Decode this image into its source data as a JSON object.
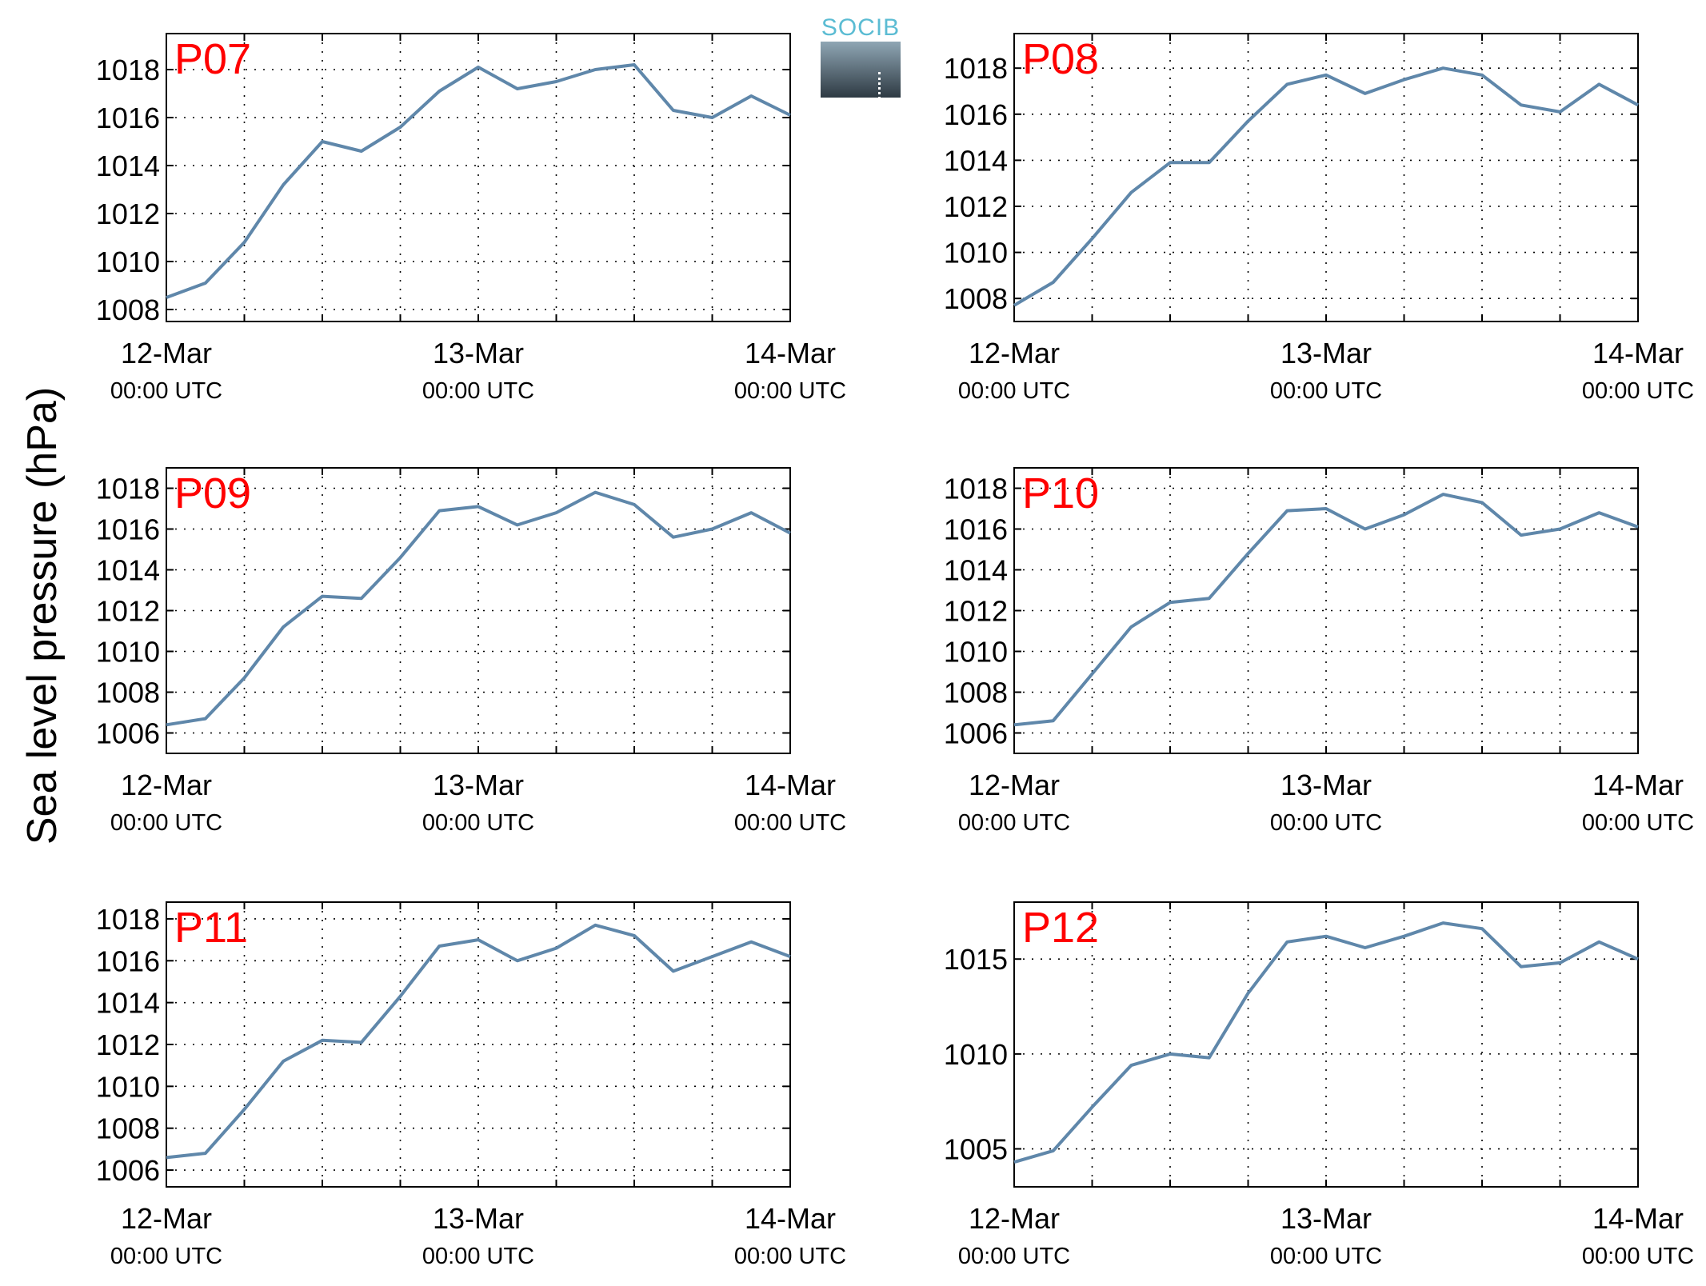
{
  "figure": {
    "ylabel": "Sea level pressure (hPa)",
    "panel_color": "#ff0000",
    "line_color": "#5f87aa",
    "x_ticks": [
      {
        "date": "12-Mar",
        "time": "00:00 UTC"
      },
      {
        "date": "13-Mar",
        "time": "00:00 UTC"
      },
      {
        "date": "14-Mar",
        "time": "00:00 UTC"
      }
    ]
  },
  "logo": {
    "text": "SOCIB",
    "text_color": "#5bbcd3"
  },
  "chart_data": [
    {
      "type": "line",
      "title": "P07",
      "x": [
        "2012-03-12 00:00",
        "2012-03-12 03:00",
        "2012-03-12 06:00",
        "2012-03-12 09:00",
        "2012-03-12 12:00",
        "2012-03-12 15:00",
        "2012-03-12 18:00",
        "2012-03-12 21:00",
        "2012-03-13 00:00",
        "2012-03-13 03:00",
        "2012-03-13 06:00",
        "2012-03-13 09:00",
        "2012-03-13 12:00",
        "2012-03-13 15:00",
        "2012-03-13 18:00",
        "2012-03-13 21:00",
        "2012-03-14 00:00"
      ],
      "xlim": [
        "2012-03-12 00:00",
        "2012-03-14 00:00"
      ],
      "ylim": [
        1007.5,
        1019.5
      ],
      "yticks": [
        1008,
        1010,
        1012,
        1014,
        1016,
        1018
      ],
      "grid": true,
      "series": [
        {
          "values": [
            1008.5,
            1009.1,
            1010.8,
            1013.2,
            1015.0,
            1014.6,
            1015.6,
            1017.1,
            1018.1,
            1017.2,
            1017.5,
            1018.0,
            1018.2,
            1016.3,
            1016.0,
            1016.9,
            1016.1
          ]
        }
      ]
    },
    {
      "type": "line",
      "title": "P08",
      "x": [
        "2012-03-12 00:00",
        "2012-03-12 03:00",
        "2012-03-12 06:00",
        "2012-03-12 09:00",
        "2012-03-12 12:00",
        "2012-03-12 15:00",
        "2012-03-12 18:00",
        "2012-03-12 21:00",
        "2012-03-13 00:00",
        "2012-03-13 03:00",
        "2012-03-13 06:00",
        "2012-03-13 09:00",
        "2012-03-13 12:00",
        "2012-03-13 15:00",
        "2012-03-13 18:00",
        "2012-03-13 21:00",
        "2012-03-14 00:00"
      ],
      "xlim": [
        "2012-03-12 00:00",
        "2012-03-14 00:00"
      ],
      "ylim": [
        1007,
        1019.5
      ],
      "yticks": [
        1008,
        1010,
        1012,
        1014,
        1016,
        1018
      ],
      "grid": true,
      "series": [
        {
          "values": [
            1007.7,
            1008.7,
            1010.6,
            1012.6,
            1013.9,
            1013.9,
            1015.7,
            1017.3,
            1017.7,
            1016.9,
            1017.5,
            1018.0,
            1017.7,
            1016.4,
            1016.1,
            1017.3,
            1016.4
          ]
        }
      ]
    },
    {
      "type": "line",
      "title": "P09",
      "x": [
        "2012-03-12 00:00",
        "2012-03-12 03:00",
        "2012-03-12 06:00",
        "2012-03-12 09:00",
        "2012-03-12 12:00",
        "2012-03-12 15:00",
        "2012-03-12 18:00",
        "2012-03-12 21:00",
        "2012-03-13 00:00",
        "2012-03-13 03:00",
        "2012-03-13 06:00",
        "2012-03-13 09:00",
        "2012-03-13 12:00",
        "2012-03-13 15:00",
        "2012-03-13 18:00",
        "2012-03-13 21:00",
        "2012-03-14 00:00"
      ],
      "xlim": [
        "2012-03-12 00:00",
        "2012-03-14 00:00"
      ],
      "ylim": [
        1005,
        1019
      ],
      "yticks": [
        1006,
        1008,
        1010,
        1012,
        1014,
        1016,
        1018
      ],
      "grid": true,
      "series": [
        {
          "values": [
            1006.4,
            1006.7,
            1008.7,
            1011.2,
            1012.7,
            1012.6,
            1014.6,
            1016.9,
            1017.1,
            1016.2,
            1016.8,
            1017.8,
            1017.2,
            1015.6,
            1016.0,
            1016.8,
            1015.8
          ]
        }
      ]
    },
    {
      "type": "line",
      "title": "P10",
      "x": [
        "2012-03-12 00:00",
        "2012-03-12 03:00",
        "2012-03-12 06:00",
        "2012-03-12 09:00",
        "2012-03-12 12:00",
        "2012-03-12 15:00",
        "2012-03-12 18:00",
        "2012-03-12 21:00",
        "2012-03-13 00:00",
        "2012-03-13 03:00",
        "2012-03-13 06:00",
        "2012-03-13 09:00",
        "2012-03-13 12:00",
        "2012-03-13 15:00",
        "2012-03-13 18:00",
        "2012-03-13 21:00",
        "2012-03-14 00:00"
      ],
      "xlim": [
        "2012-03-12 00:00",
        "2012-03-14 00:00"
      ],
      "ylim": [
        1005,
        1019
      ],
      "yticks": [
        1006,
        1008,
        1010,
        1012,
        1014,
        1016,
        1018
      ],
      "grid": true,
      "series": [
        {
          "values": [
            1006.4,
            1006.6,
            1008.9,
            1011.2,
            1012.4,
            1012.6,
            1014.8,
            1016.9,
            1017.0,
            1016.0,
            1016.7,
            1017.7,
            1017.3,
            1015.7,
            1016.0,
            1016.8,
            1016.1
          ]
        }
      ]
    },
    {
      "type": "line",
      "title": "P11",
      "x": [
        "2012-03-12 00:00",
        "2012-03-12 03:00",
        "2012-03-12 06:00",
        "2012-03-12 09:00",
        "2012-03-12 12:00",
        "2012-03-12 15:00",
        "2012-03-12 18:00",
        "2012-03-12 21:00",
        "2012-03-13 00:00",
        "2012-03-13 03:00",
        "2012-03-13 06:00",
        "2012-03-13 09:00",
        "2012-03-13 12:00",
        "2012-03-13 15:00",
        "2012-03-13 18:00",
        "2012-03-13 21:00",
        "2012-03-14 00:00"
      ],
      "xlim": [
        "2012-03-12 00:00",
        "2012-03-14 00:00"
      ],
      "ylim": [
        1005.2,
        1018.8
      ],
      "yticks": [
        1006,
        1008,
        1010,
        1012,
        1014,
        1016,
        1018
      ],
      "grid": true,
      "series": [
        {
          "values": [
            1006.6,
            1006.8,
            1008.9,
            1011.2,
            1012.2,
            1012.1,
            1014.3,
            1016.7,
            1017.0,
            1016.0,
            1016.6,
            1017.7,
            1017.2,
            1015.5,
            1016.2,
            1016.9,
            1016.2
          ]
        }
      ]
    },
    {
      "type": "line",
      "title": "P12",
      "x": [
        "2012-03-12 00:00",
        "2012-03-12 03:00",
        "2012-03-12 06:00",
        "2012-03-12 09:00",
        "2012-03-12 12:00",
        "2012-03-12 15:00",
        "2012-03-12 18:00",
        "2012-03-12 21:00",
        "2012-03-13 00:00",
        "2012-03-13 03:00",
        "2012-03-13 06:00",
        "2012-03-13 09:00",
        "2012-03-13 12:00",
        "2012-03-13 15:00",
        "2012-03-13 18:00",
        "2012-03-13 21:00",
        "2012-03-14 00:00"
      ],
      "xlim": [
        "2012-03-12 00:00",
        "2012-03-14 00:00"
      ],
      "ylim": [
        1003,
        1018
      ],
      "yticks": [
        1005,
        1010,
        1015
      ],
      "grid": true,
      "series": [
        {
          "values": [
            1004.3,
            1004.9,
            1007.2,
            1009.4,
            1010.0,
            1009.8,
            1013.2,
            1015.9,
            1016.2,
            1015.6,
            1016.2,
            1016.9,
            1016.6,
            1014.6,
            1014.8,
            1015.9,
            1015.0
          ]
        }
      ]
    }
  ]
}
